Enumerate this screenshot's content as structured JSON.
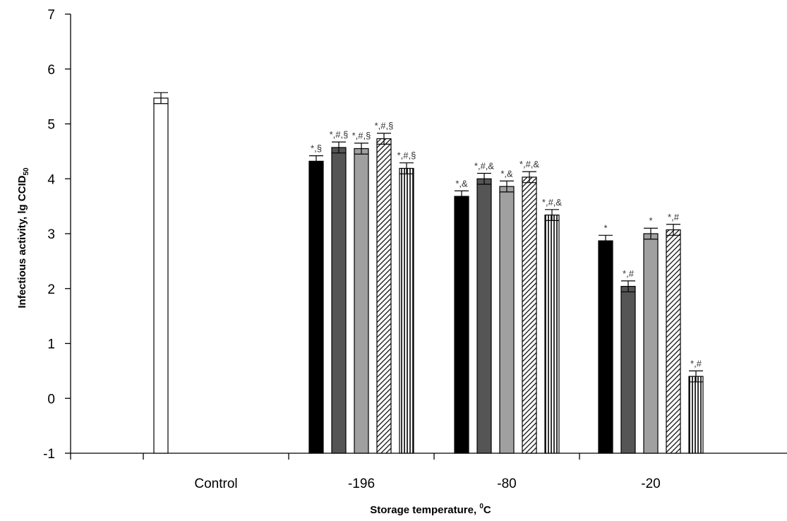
{
  "chart_data": {
    "type": "bar",
    "xlabel": "Storage temperature, ",
    "xlabel_sup": "0",
    "xlabel_unit": "C",
    "ylabel": "Infectious activity, lg CCID",
    "ylabel_sub": "50",
    "ylim": [
      -1,
      7
    ],
    "yticks": [
      -1,
      0,
      1,
      2,
      3,
      4,
      5,
      6,
      7
    ],
    "grid": false,
    "legend": "none",
    "groups": [
      {
        "label": "Control",
        "bars": [
          {
            "value": 5.47,
            "err": 0.1,
            "fill": "white",
            "annotation": ""
          }
        ]
      },
      {
        "label": "-196",
        "bars": [
          {
            "value": 4.32,
            "err": 0.1,
            "fill": "black",
            "annotation": "*,§"
          },
          {
            "value": 4.57,
            "err": 0.1,
            "fill": "dark",
            "annotation": "*,#,§"
          },
          {
            "value": 4.55,
            "err": 0.1,
            "fill": "light",
            "annotation": "*,#,§"
          },
          {
            "value": 4.73,
            "err": 0.1,
            "fill": "diagonal",
            "annotation": "*,#,§"
          },
          {
            "value": 4.19,
            "err": 0.1,
            "fill": "vertical",
            "annotation": "*,#,§"
          }
        ]
      },
      {
        "label": "-80",
        "bars": [
          {
            "value": 3.68,
            "err": 0.1,
            "fill": "black",
            "annotation": "*,&"
          },
          {
            "value": 4.0,
            "err": 0.1,
            "fill": "dark",
            "annotation": "*,#,&"
          },
          {
            "value": 3.86,
            "err": 0.1,
            "fill": "light",
            "annotation": "*,&"
          },
          {
            "value": 4.03,
            "err": 0.1,
            "fill": "diagonal",
            "annotation": "*,#,&"
          },
          {
            "value": 3.34,
            "err": 0.1,
            "fill": "vertical",
            "annotation": "*,#,&"
          }
        ]
      },
      {
        "label": "-20",
        "bars": [
          {
            "value": 2.87,
            "err": 0.1,
            "fill": "black",
            "annotation": "*"
          },
          {
            "value": 2.04,
            "err": 0.1,
            "fill": "dark",
            "annotation": "*,#"
          },
          {
            "value": 3.0,
            "err": 0.1,
            "fill": "light",
            "annotation": "*"
          },
          {
            "value": 3.07,
            "err": 0.1,
            "fill": "diagonal",
            "annotation": "*,#"
          },
          {
            "value": 0.4,
            "err": 0.1,
            "fill": "vertical",
            "annotation": "*,#"
          }
        ]
      }
    ],
    "colors": {
      "black": "#000000",
      "dark": "#555555",
      "light": "#a0a0a0",
      "white": "#ffffff",
      "axis": "#000000"
    }
  }
}
